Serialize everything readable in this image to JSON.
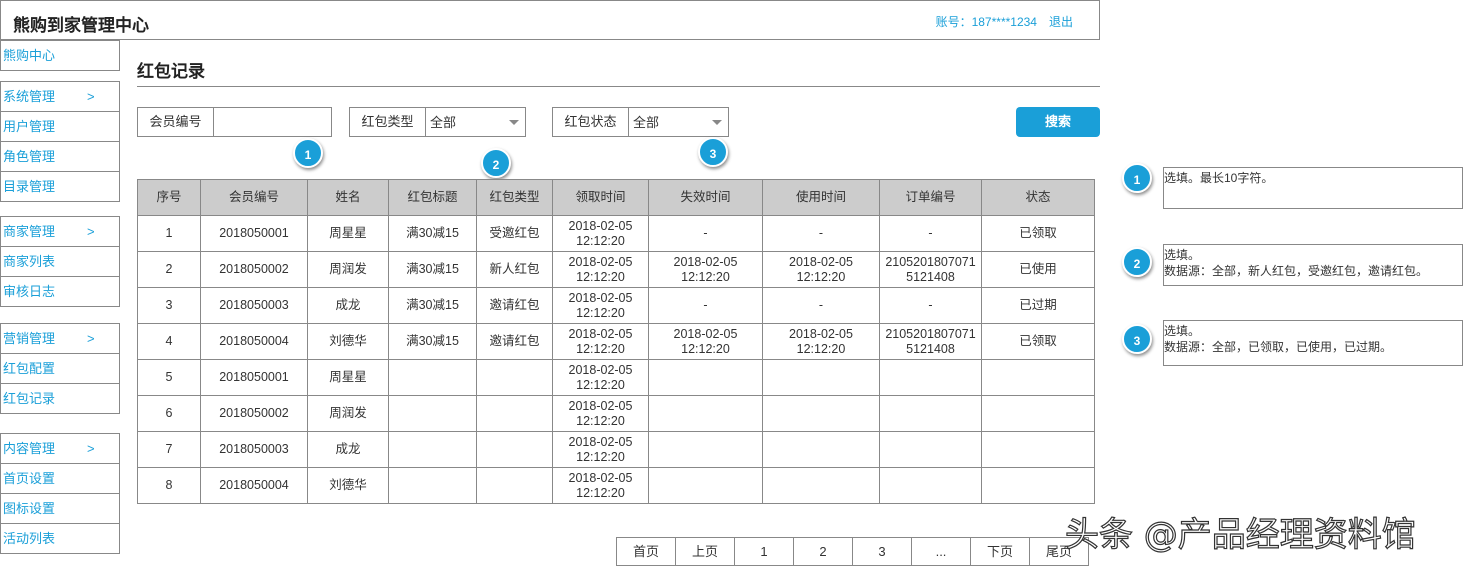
{
  "header": {
    "title": "熊购到家管理中心",
    "account": "账号：187****1234",
    "logout": "退出"
  },
  "sidebar": [
    {
      "label": "熊购中心",
      "arrow": ""
    },
    {
      "label": "系统管理",
      "arrow": ">"
    },
    {
      "label": "用户管理",
      "arrow": ""
    },
    {
      "label": "角色管理",
      "arrow": ""
    },
    {
      "label": "目录管理",
      "arrow": ""
    },
    {
      "label": "商家管理",
      "arrow": ">"
    },
    {
      "label": "商家列表",
      "arrow": ""
    },
    {
      "label": "审核日志",
      "arrow": ""
    },
    {
      "label": "营销管理",
      "arrow": ">"
    },
    {
      "label": "红包配置",
      "arrow": ""
    },
    {
      "label": "红包记录",
      "arrow": ""
    },
    {
      "label": "内容管理",
      "arrow": ">"
    },
    {
      "label": "首页设置",
      "arrow": ""
    },
    {
      "label": "图标设置",
      "arrow": ""
    },
    {
      "label": "活动列表",
      "arrow": ""
    }
  ],
  "page_title": "红包记录",
  "filters": {
    "member_label": "会员编号",
    "member_value": "",
    "type_label": "红包类型",
    "type_value": "全部",
    "status_label": "红包状态",
    "status_value": "全部",
    "search": "搜索"
  },
  "markers": [
    "1",
    "2",
    "3"
  ],
  "table": {
    "columns": [
      "序号",
      "会员编号",
      "姓名",
      "红包标题",
      "红包类型",
      "领取时间",
      "失效时间",
      "使用时间",
      "订单编号",
      "状态"
    ],
    "rows": [
      [
        "1",
        "2018050001",
        "周星星",
        "满30减15",
        "受邀红包",
        "2018-02-05\n12:12:20",
        "-",
        "-",
        "-",
        "已领取"
      ],
      [
        "2",
        "2018050002",
        "周润发",
        "满30减15",
        "新人红包",
        "2018-02-05\n12:12:20",
        "2018-02-05\n12:12:20",
        "2018-02-05\n12:12:20",
        "2105201807071\n5121408",
        "已使用"
      ],
      [
        "3",
        "2018050003",
        "成龙",
        "满30减15",
        "邀请红包",
        "2018-02-05\n12:12:20",
        "-",
        "-",
        "-",
        "已过期"
      ],
      [
        "4",
        "2018050004",
        "刘德华",
        "满30减15",
        "邀请红包",
        "2018-02-05\n12:12:20",
        "2018-02-05\n12:12:20",
        "2018-02-05\n12:12:20",
        "2105201807071\n5121408",
        "已领取"
      ],
      [
        "5",
        "2018050001",
        "周星星",
        "",
        "",
        "2018-02-05\n12:12:20",
        "",
        "",
        "",
        ""
      ],
      [
        "6",
        "2018050002",
        "周润发",
        "",
        "",
        "2018-02-05\n12:12:20",
        "",
        "",
        "",
        ""
      ],
      [
        "7",
        "2018050003",
        "成龙",
        "",
        "",
        "2018-02-05\n12:12:20",
        "",
        "",
        "",
        ""
      ],
      [
        "8",
        "2018050004",
        "刘德华",
        "",
        "",
        "2018-02-05\n12:12:20",
        "",
        "",
        "",
        ""
      ]
    ]
  },
  "pagination": [
    "首页",
    "上页",
    "1",
    "2",
    "3",
    "...",
    "下页",
    "尾页"
  ],
  "notes": [
    {
      "num": "1",
      "lines": [
        "选填。最长10字符。"
      ]
    },
    {
      "num": "2",
      "lines": [
        "选填。",
        "数据源：全部，新人红包，受邀红包，邀请红包。"
      ]
    },
    {
      "num": "3",
      "lines": [
        "选填。",
        "数据源：全部，已领取，已使用，已过期。"
      ]
    }
  ],
  "watermark": "头条 @产品经理资料馆",
  "colors": {
    "accent": "#1a9fd8",
    "table_header": "#cccccc",
    "border": "#888888"
  }
}
